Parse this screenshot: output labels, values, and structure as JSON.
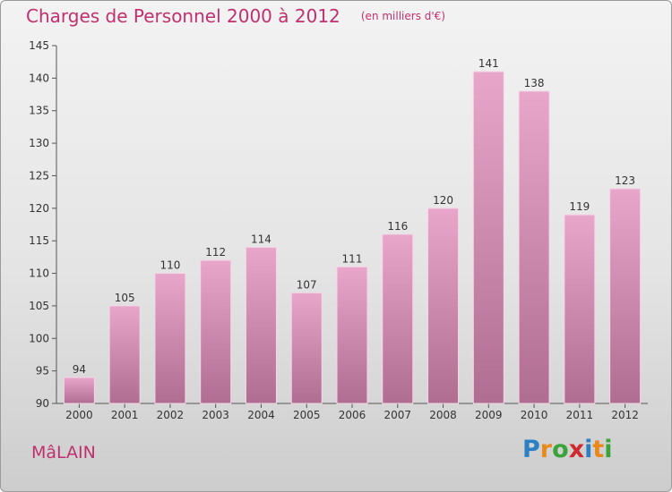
{
  "header": {
    "title": "Charges de Personnel 2000 à 2012",
    "unit": "(en milliers d'€)"
  },
  "footer": {
    "commune": "MâLAIN",
    "logo_letters": [
      {
        "ch": "P",
        "color": "#2c7fc4"
      },
      {
        "ch": "r",
        "color": "#e9891c"
      },
      {
        "ch": "o",
        "color": "#3aa33a"
      },
      {
        "ch": "x",
        "color": "#d1282e"
      },
      {
        "ch": "i",
        "color": "#2c7fc4"
      },
      {
        "ch": "t",
        "color": "#e9891c"
      },
      {
        "ch": "i",
        "color": "#3aa33a"
      }
    ]
  },
  "colors": {
    "accent": "#c0306f",
    "bar_top": "#e8a6cb",
    "bar_bottom": "#b06d92"
  },
  "chart_data": {
    "type": "bar",
    "categories": [
      "2000",
      "2001",
      "2002",
      "2003",
      "2004",
      "2005",
      "2006",
      "2007",
      "2008",
      "2009",
      "2010",
      "2011",
      "2012"
    ],
    "values": [
      94,
      105,
      110,
      112,
      114,
      107,
      111,
      116,
      120,
      141,
      138,
      119,
      123
    ],
    "ylim": [
      90,
      145
    ],
    "yticks": [
      90,
      95,
      100,
      105,
      110,
      115,
      120,
      125,
      130,
      135,
      140,
      145
    ],
    "grid": false,
    "legend": "none"
  }
}
